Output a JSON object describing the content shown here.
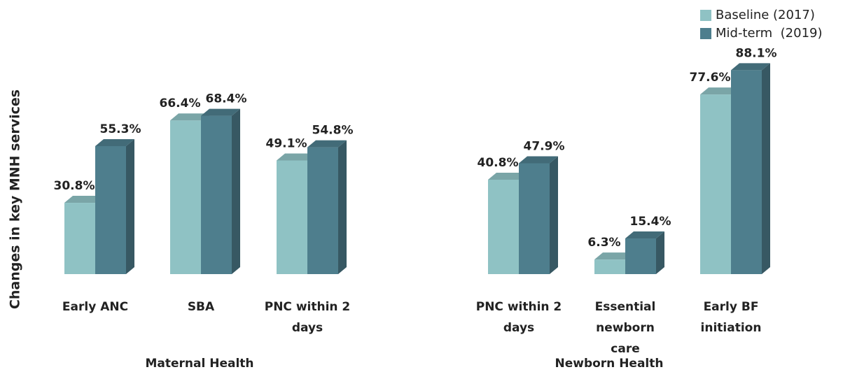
{
  "chart_data": {
    "type": "bar",
    "y_label": "Changes in key MNH services",
    "groups": [
      "Maternal Health",
      "Newborn Health"
    ],
    "categories": [
      "Early ANC",
      "SBA",
      "PNC within 2 days",
      "PNC within 2 days",
      "Essential newborn care",
      "Early BF initiation"
    ],
    "series": [
      {
        "name": "Baseline (2017)",
        "color": "#8fc2c4",
        "values": [
          30.8,
          66.4,
          49.1,
          40.8,
          6.3,
          77.6
        ],
        "value_labels": [
          "30.8%",
          "66.4%",
          "49.1%",
          "40.8%",
          "6.3%",
          "77.6%"
        ]
      },
      {
        "name": "Mid-term  (2019)",
        "color": "#4e7e8d",
        "values": [
          55.3,
          68.4,
          54.8,
          47.9,
          15.4,
          88.1
        ],
        "value_labels": [
          "55.3%",
          "68.4%",
          "54.8%",
          "47.9%",
          "15.4%",
          "88.1%"
        ]
      }
    ],
    "legend": "top-right"
  }
}
